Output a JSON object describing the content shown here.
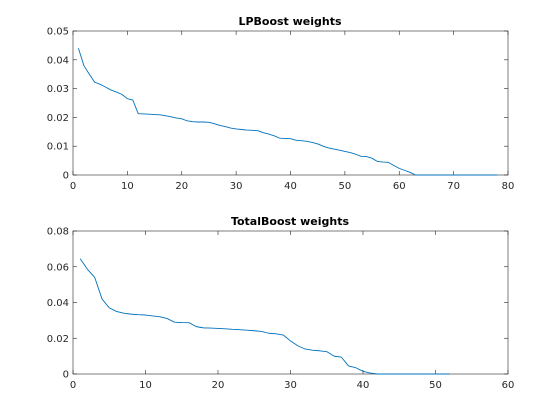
{
  "chart_data": [
    {
      "type": "line",
      "title": "LPBoost weights",
      "xlim": [
        0,
        80
      ],
      "ylim": [
        0,
        0.05
      ],
      "xticks": [
        0,
        10,
        20,
        30,
        40,
        50,
        60,
        70,
        80
      ],
      "yticks": [
        0,
        0.01,
        0.02,
        0.03,
        0.04,
        0.05
      ],
      "xtick_labels": [
        "0",
        "10",
        "20",
        "30",
        "40",
        "50",
        "60",
        "70",
        "80"
      ],
      "ytick_labels": [
        "0",
        "0.01",
        "0.02",
        "0.03",
        "0.04",
        "0.05"
      ],
      "grid": false,
      "series": [
        {
          "color": "#0072BD",
          "x": [
            1,
            2,
            3,
            4,
            5,
            6,
            7,
            8,
            9,
            10,
            11,
            12,
            13,
            14,
            15,
            16,
            17,
            18,
            19,
            20,
            21,
            22,
            23,
            24,
            25,
            26,
            27,
            28,
            29,
            30,
            31,
            32,
            33,
            34,
            35,
            36,
            37,
            38,
            39,
            40,
            41,
            42,
            43,
            44,
            45,
            46,
            47,
            48,
            49,
            50,
            51,
            52,
            53,
            54,
            55,
            56,
            57,
            58,
            59,
            60,
            61,
            62,
            63,
            64,
            65,
            66,
            67,
            68,
            69,
            70,
            71,
            72,
            73,
            74,
            75,
            76,
            77,
            78
          ],
          "y": [
            0.044,
            0.038,
            0.035,
            0.0322,
            0.0315,
            0.0305,
            0.0295,
            0.0288,
            0.028,
            0.0265,
            0.026,
            0.0213,
            0.0212,
            0.0211,
            0.021,
            0.0209,
            0.0206,
            0.0202,
            0.0198,
            0.0195,
            0.0188,
            0.0185,
            0.0184,
            0.0184,
            0.0183,
            0.0178,
            0.0172,
            0.0168,
            0.0163,
            0.016,
            0.0158,
            0.0156,
            0.0155,
            0.0154,
            0.0147,
            0.0142,
            0.0136,
            0.0128,
            0.0127,
            0.0126,
            0.0121,
            0.0119,
            0.0117,
            0.0113,
            0.0108,
            0.01,
            0.0094,
            0.009,
            0.0086,
            0.0082,
            0.0078,
            0.0072,
            0.0065,
            0.0064,
            0.0058,
            0.0047,
            0.0045,
            0.0044,
            0.0033,
            0.0023,
            0.0016,
            0.0009,
            0,
            0,
            0,
            0,
            0,
            0,
            0,
            0,
            0,
            0,
            0,
            0,
            0,
            0,
            0,
            0
          ]
        }
      ]
    },
    {
      "type": "line",
      "title": "TotalBoost weights",
      "xlim": [
        0,
        60
      ],
      "ylim": [
        0,
        0.08
      ],
      "xticks": [
        0,
        10,
        20,
        30,
        40,
        50,
        60
      ],
      "yticks": [
        0,
        0.02,
        0.04,
        0.06,
        0.08
      ],
      "xtick_labels": [
        "0",
        "10",
        "20",
        "30",
        "40",
        "50",
        "60"
      ],
      "ytick_labels": [
        "0",
        "0.02",
        "0.04",
        "0.06",
        "0.08"
      ],
      "grid": false,
      "series": [
        {
          "color": "#0072BD",
          "x": [
            1,
            2,
            3,
            4,
            5,
            6,
            7,
            8,
            9,
            10,
            11,
            12,
            13,
            14,
            15,
            16,
            17,
            18,
            19,
            20,
            21,
            22,
            23,
            24,
            25,
            26,
            27,
            28,
            29,
            30,
            31,
            32,
            33,
            34,
            35,
            36,
            37,
            38,
            39,
            40,
            41,
            42,
            43,
            44,
            45,
            46,
            47,
            48,
            49,
            50,
            51,
            52
          ],
          "y": [
            0.0645,
            0.0585,
            0.054,
            0.042,
            0.037,
            0.035,
            0.034,
            0.0335,
            0.0332,
            0.033,
            0.0325,
            0.032,
            0.031,
            0.029,
            0.0288,
            0.0287,
            0.0265,
            0.0258,
            0.0257,
            0.0255,
            0.0253,
            0.025,
            0.0248,
            0.0245,
            0.0242,
            0.0238,
            0.0228,
            0.0225,
            0.0218,
            0.0185,
            0.0158,
            0.014,
            0.0133,
            0.013,
            0.0125,
            0.01,
            0.0095,
            0.0045,
            0.0035,
            0.0015,
            0.0005,
            0,
            0,
            0,
            0,
            0,
            0,
            0,
            0,
            0,
            0,
            0
          ]
        }
      ]
    }
  ]
}
